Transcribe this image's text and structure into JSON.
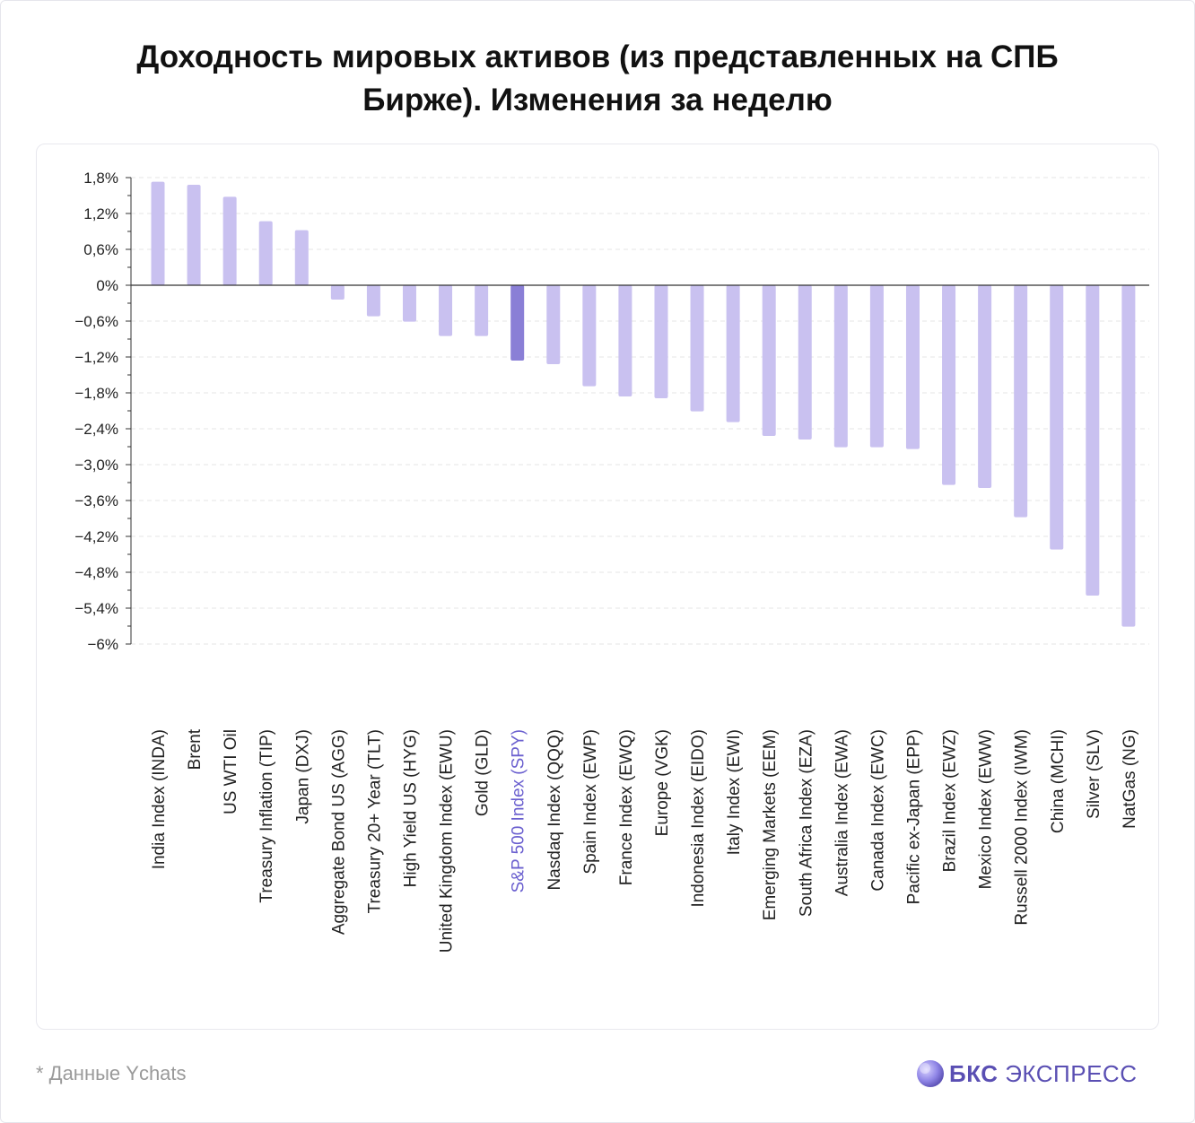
{
  "title_line1": "Доходность мировых активов (из представленных на СПБ",
  "title_line2": "Бирже). Изменения за неделю",
  "footnote": "* Данные Ychats",
  "logo": {
    "bold": "БКС",
    "rest": "ЭКСПРЕСС"
  },
  "colors": {
    "bar": "#c9c1f0",
    "highlight_bar": "#8a7fd6",
    "highlight_label": "#6a5fcf",
    "axis": "#333333",
    "grid": "#e4e4e4"
  },
  "chart_data": {
    "type": "bar",
    "title": "Доходность мировых активов (из представленных на СПБ Бирже). Изменения за неделю",
    "ylim": [
      -6,
      1.8
    ],
    "yticks": [
      "1,8%",
      "1,2%",
      "0,6%",
      "0%",
      "-0,6%",
      "-1,2%",
      "-1,8%",
      "-2,4%",
      "-3,0%",
      "-3,6%",
      "-4,2%",
      "-4,8%",
      "-5,4%",
      "-6%"
    ],
    "ytick_values": [
      1.8,
      1.2,
      0.6,
      0,
      -0.6,
      -1.2,
      -1.8,
      -2.4,
      -3.0,
      -3.6,
      -4.2,
      -4.8,
      -5.4,
      -6
    ],
    "grid": true,
    "highlight": "S&P 500 Index (SPY)",
    "categories": [
      "India Index (INDA)",
      "Brent",
      "US WTI Oil",
      "Treasury Inflation (TIP)",
      "Japan (DXJ)",
      "Aggregate Bond US (AGG)",
      "Treasury 20+ Year (TLT)",
      "High Yield US (HYG)",
      "United Kingdom Index (EWU)",
      "Gold (GLD)",
      "S&P 500 Index (SPY)",
      "Nasdaq Index (QQQ)",
      "Spain Index (EWP)",
      "France Index (EWQ)",
      "Europe (VGK)",
      "Indonesia Index (EIDO)",
      "Italy Index (EWI)",
      "Emerging Markets (EEM)",
      "South Africa Index (EZA)",
      "Australia Index (EWA)",
      "Canada Index (EWC)",
      "Pacific ex-Japan (EPP)",
      "Brazil Index (EWZ)",
      "Mexico Index (EWW)",
      "Russell 2000 Index (IWM)",
      "China (MCHI)",
      "Silver (SLV)",
      "NatGas (NG)"
    ],
    "values": [
      1.73,
      1.68,
      1.48,
      1.07,
      0.92,
      -0.24,
      -0.52,
      -0.61,
      -0.85,
      -0.85,
      -1.26,
      -1.32,
      -1.69,
      -1.86,
      -1.89,
      -2.11,
      -2.29,
      -2.52,
      -2.58,
      -2.71,
      -2.71,
      -2.74,
      -3.34,
      -3.39,
      -3.88,
      -4.42,
      -5.19,
      -5.71
    ]
  }
}
